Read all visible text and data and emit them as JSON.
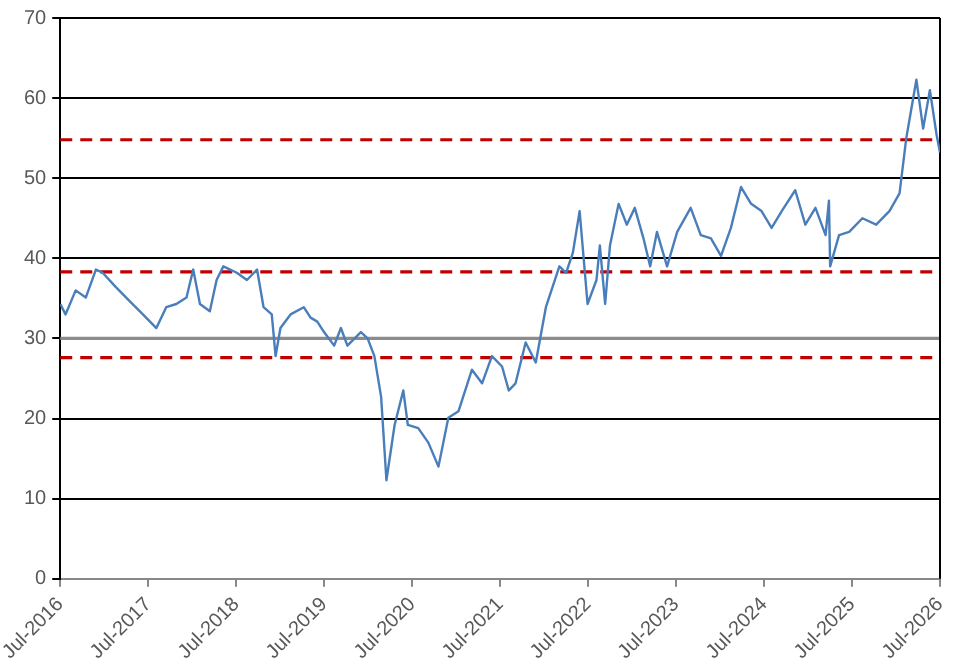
{
  "chart_data": {
    "type": "line",
    "x": [
      "2016-07-01",
      "2016-07-23",
      "2016-09-03",
      "2016-10-15",
      "2016-11-26",
      "2016-12-24",
      "2017-02-17",
      "2017-04-14",
      "2017-06-09",
      "2017-08-04",
      "2017-09-14",
      "2017-10-26",
      "2017-12-07",
      "2018-01-04",
      "2018-02-01",
      "2018-03-14",
      "2018-04-11",
      "2018-05-09",
      "2018-07-04",
      "2018-08-15",
      "2018-09-26",
      "2018-10-23",
      "2018-11-26",
      "2018-12-12",
      "2019-01-01",
      "2019-02-12",
      "2019-04-08",
      "2019-05-06",
      "2019-06-03",
      "2019-07-01",
      "2019-08-12",
      "2019-09-09",
      "2019-10-06",
      "2019-12-01",
      "2019-12-29",
      "2020-01-26",
      "2020-02-23",
      "2020-03-16",
      "2020-04-19",
      "2020-05-25",
      "2020-06-13",
      "2020-07-26",
      "2020-09-06",
      "2020-10-18",
      "2020-11-28",
      "2021-01-09",
      "2021-03-06",
      "2021-04-17",
      "2021-05-28",
      "2021-07-09",
      "2021-08-06",
      "2021-09-03",
      "2021-10-15",
      "2021-11-26",
      "2022-01-07",
      "2022-03-04",
      "2022-04-01",
      "2022-04-29",
      "2022-05-27",
      "2022-06-29",
      "2022-08-05",
      "2022-08-19",
      "2022-09-10",
      "2022-09-30",
      "2022-11-05",
      "2022-12-09",
      "2023-01-11",
      "2023-02-16",
      "2023-03-16",
      "2023-04-13",
      "2023-05-25",
      "2023-07-06",
      "2023-08-31",
      "2023-10-12",
      "2023-11-23",
      "2024-01-04",
      "2024-02-14",
      "2024-03-27",
      "2024-05-08",
      "2024-06-20",
      "2024-08-01",
      "2024-09-12",
      "2024-11-07",
      "2024-12-19",
      "2025-01-30",
      "2025-03-13",
      "2025-03-27",
      "2025-04-01",
      "2025-05-08",
      "2025-06-19",
      "2025-08-13",
      "2025-10-09",
      "2025-12-03",
      "2026-01-14",
      "2026-02-11",
      "2026-03-25",
      "2026-04-22",
      "2026-05-20",
      "2026-06-17",
      "2026-07-01"
    ],
    "series": [
      {
        "color": "#4a7ebb",
        "values": [
          34.3,
          33,
          36,
          35.1,
          38.6,
          38.2,
          36.4,
          34.7,
          33,
          31.3,
          33.9,
          34.3,
          35.1,
          38.6,
          34.3,
          33.4,
          37.3,
          39,
          38.2,
          37.3,
          38.6,
          33.9,
          33,
          27.8,
          31.3,
          33,
          33.9,
          32.6,
          32.1,
          30.8,
          29.1,
          31.3,
          29.1,
          30.8,
          30,
          27.8,
          22.7,
          12.3,
          19.2,
          23.5,
          19.2,
          18.8,
          17,
          14,
          20.1,
          20.9,
          26.1,
          24.4,
          27.8,
          26.5,
          23.5,
          24.4,
          29.5,
          27,
          33.9,
          39,
          38.2,
          40.7,
          45.9,
          34.3,
          37.3,
          41.6,
          34.3,
          41.6,
          46.8,
          44.2,
          46.3,
          42.5,
          39,
          43.3,
          39,
          43.3,
          46.3,
          42.9,
          42.5,
          40.3,
          43.8,
          48.9,
          46.8,
          45.9,
          43.8,
          45.9,
          48.5,
          44.2,
          46.3,
          42.9,
          47.2,
          39,
          42.9,
          43.3,
          45,
          44.2,
          45.9,
          48.1,
          55,
          62.3,
          56.2,
          61,
          55.4,
          53.2
        ]
      }
    ],
    "xlim": [
      "2016-07-01",
      "2026-07-01"
    ],
    "xticks": [
      {
        "value": "2016-07-01",
        "label": "Jul-2016"
      },
      {
        "value": "2017-07-01",
        "label": "Jul-2017"
      },
      {
        "value": "2018-07-01",
        "label": "Jul-2018"
      },
      {
        "value": "2019-07-01",
        "label": "Jul-2019"
      },
      {
        "value": "2020-07-01",
        "label": "Jul-2020"
      },
      {
        "value": "2021-07-01",
        "label": "Jul-2021"
      },
      {
        "value": "2022-07-01",
        "label": "Jul-2022"
      },
      {
        "value": "2023-07-01",
        "label": "Jul-2023"
      },
      {
        "value": "2024-07-01",
        "label": "Jul-2024"
      },
      {
        "value": "2025-07-01",
        "label": "Jul-2025"
      },
      {
        "value": "2026-07-01",
        "label": "Jul-2026"
      }
    ],
    "ylim": [
      0,
      70
    ],
    "yticks": [
      0,
      10,
      20,
      30,
      40,
      50,
      60,
      70
    ],
    "ref_lines": [
      {
        "axis": "y",
        "value": 54.8,
        "color": "#c00000",
        "line_style": "dashed"
      },
      {
        "axis": "y",
        "value": 38.3,
        "color": "#c00000",
        "line_style": "dashed"
      },
      {
        "axis": "y",
        "value": 27.6,
        "color": "#c00000",
        "line_style": "dashed"
      },
      {
        "axis": "y",
        "value": 30,
        "color": "#8c8c8c",
        "line_style": "solid"
      }
    ],
    "grid": "y",
    "legend": false,
    "marker": "none",
    "line_style": "solid"
  }
}
